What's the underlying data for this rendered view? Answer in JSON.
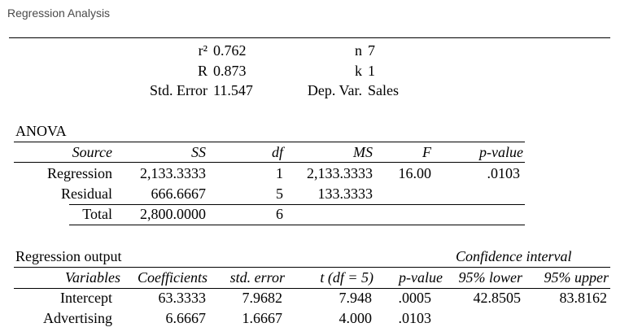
{
  "window": {
    "title": "Regression Analysis"
  },
  "summary": {
    "r2_label": "r²",
    "r2_value": "0.762",
    "r_label": "R",
    "r_value": "0.873",
    "se_label": "Std. Error",
    "se_value": "11.547",
    "n_label": "n",
    "n_value": "7",
    "k_label": "k",
    "k_value": "1",
    "dep_label": "Dep. Var.",
    "dep_value": "Sales"
  },
  "anova": {
    "heading": "ANOVA",
    "headers": [
      "Source",
      "SS",
      "df",
      "MS",
      "F",
      "p-value"
    ],
    "rows": [
      [
        "Regression",
        "2,133.3333",
        "1",
        "2,133.3333",
        "16.00",
        ".0103"
      ],
      [
        "Residual",
        "666.6667",
        "5",
        "133.3333",
        "",
        ""
      ],
      [
        "Total",
        "2,800.0000",
        "6",
        "",
        "",
        ""
      ]
    ]
  },
  "regression": {
    "heading": "Regression output",
    "ci_heading": "Confidence interval",
    "headers": [
      "Variables",
      "Coefficients",
      "std. error",
      "t (df = 5)",
      "p-value",
      "95% lower",
      "95% upper"
    ],
    "rows": [
      [
        "Intercept",
        "63.3333",
        "7.9682",
        "7.948",
        ".0005",
        "42.8505",
        "83.8162"
      ],
      [
        "Advertising",
        "6.6667",
        "1.6667",
        "4.000",
        ".0103",
        "",
        ""
      ]
    ]
  }
}
